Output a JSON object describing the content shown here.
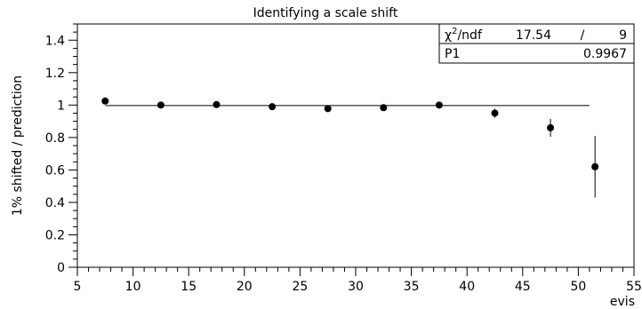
{
  "chart_data": {
    "type": "scatter",
    "title": "Identifying a scale shift",
    "xlabel": "evis",
    "ylabel": "1% shifted / prediction",
    "xlim": [
      5,
      55
    ],
    "ylim": [
      0,
      1.5
    ],
    "x_ticks": [
      "5",
      "10",
      "15",
      "20",
      "25",
      "30",
      "35",
      "40",
      "45",
      "50",
      "55"
    ],
    "y_ticks": [
      "0",
      "0.2",
      "0.4",
      "0.6",
      "0.8",
      "1",
      "1.2",
      "1.4"
    ],
    "grid": false,
    "points": [
      {
        "x": 7.5,
        "y": 1.025,
        "err": 0.005
      },
      {
        "x": 12.5,
        "y": 1.0,
        "err": 0.005
      },
      {
        "x": 17.5,
        "y": 1.003,
        "err": 0.006
      },
      {
        "x": 22.5,
        "y": 0.99,
        "err": 0.007
      },
      {
        "x": 27.5,
        "y": 0.978,
        "err": 0.008
      },
      {
        "x": 32.5,
        "y": 0.984,
        "err": 0.009
      },
      {
        "x": 37.5,
        "y": 1.0,
        "err": 0.012
      },
      {
        "x": 42.5,
        "y": 0.95,
        "err": 0.028
      },
      {
        "x": 47.5,
        "y": 0.86,
        "err": 0.055
      },
      {
        "x": 51.5,
        "y": 0.62,
        "err": 0.19
      }
    ],
    "fit_line": {
      "y": 0.9967,
      "x_range": [
        7.5,
        51
      ]
    },
    "stats_box": {
      "rows": [
        {
          "name": "χ²/ndf",
          "value": "17.54",
          "sep": "/",
          "extra": "9"
        },
        {
          "name": "P1",
          "value": "0.9967"
        }
      ]
    }
  }
}
